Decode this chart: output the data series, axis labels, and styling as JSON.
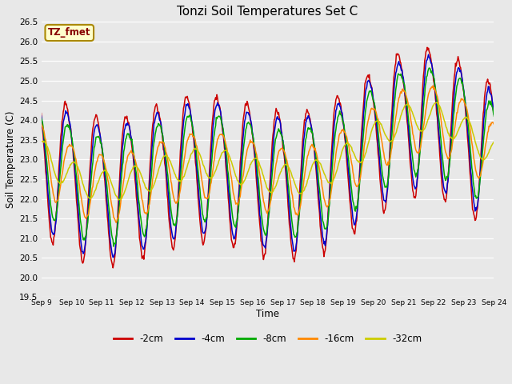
{
  "title": "Tonzi Soil Temperatures Set C",
  "xlabel": "Time",
  "ylabel": "Soil Temperature (C)",
  "ylim": [
    19.5,
    26.5
  ],
  "series_labels": [
    "-2cm",
    "-4cm",
    "-8cm",
    "-16cm",
    "-32cm"
  ],
  "series_colors": [
    "#cc0000",
    "#0000cc",
    "#00aa00",
    "#ff8800",
    "#cccc00"
  ],
  "annotation_text": "TZ_fmet",
  "annotation_color": "#880000",
  "annotation_bg": "#ffffcc",
  "annotation_border": "#aa8800",
  "background_color": "#e8e8e8",
  "grid_color": "#ffffff",
  "tick_labels": [
    "Sep 9",
    "Sep 10",
    "Sep 11",
    "Sep 12",
    "Sep 13",
    "Sep 14",
    "Sep 15",
    "Sep 16",
    "Sep 17",
    "Sep 18",
    "Sep 19",
    "Sep 20",
    "Sep 21",
    "Sep 22",
    "Sep 23",
    "Sep 24"
  ],
  "n_days": 15,
  "figwidth": 6.4,
  "figheight": 4.8,
  "dpi": 100,
  "line_width": 1.1
}
